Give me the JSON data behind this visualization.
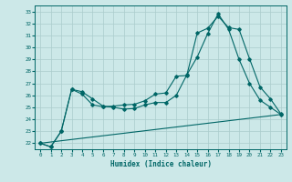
{
  "xlabel": "Humidex (Indice chaleur)",
  "background_color": "#cce8e8",
  "grid_color": "#aacccc",
  "line_color": "#006666",
  "xlim": [
    -0.5,
    23.5
  ],
  "ylim": [
    21.5,
    33.5
  ],
  "yticks": [
    22,
    23,
    24,
    25,
    26,
    27,
    28,
    29,
    30,
    31,
    32,
    33
  ],
  "xticks": [
    0,
    1,
    2,
    3,
    4,
    5,
    6,
    7,
    8,
    9,
    10,
    11,
    12,
    13,
    14,
    15,
    16,
    17,
    18,
    19,
    20,
    21,
    22,
    23
  ],
  "line1_x": [
    0,
    1,
    2,
    3,
    4,
    5,
    6,
    7,
    8,
    9,
    10,
    11,
    12,
    13,
    14,
    15,
    16,
    17,
    18,
    19,
    20,
    21,
    22,
    23
  ],
  "line1_y": [
    22.0,
    21.7,
    23.0,
    26.5,
    26.3,
    25.7,
    25.1,
    25.0,
    24.85,
    24.9,
    25.2,
    25.4,
    25.4,
    26.0,
    27.7,
    29.2,
    31.15,
    32.8,
    31.5,
    29.0,
    27.0,
    25.6,
    25.0,
    24.4
  ],
  "line2_x": [
    0,
    1,
    2,
    3,
    4,
    5,
    6,
    7,
    8,
    9,
    10,
    11,
    12,
    13,
    14,
    15,
    16,
    17,
    18,
    19,
    20,
    21,
    22,
    23
  ],
  "line2_y": [
    22.0,
    21.7,
    23.0,
    26.5,
    26.1,
    25.2,
    25.05,
    25.1,
    25.2,
    25.25,
    25.55,
    26.1,
    26.2,
    27.6,
    27.65,
    31.2,
    31.6,
    32.6,
    31.65,
    31.5,
    29.05,
    26.7,
    25.7,
    24.45
  ],
  "line3_x": [
    0,
    23
  ],
  "line3_y": [
    22.0,
    24.4
  ]
}
